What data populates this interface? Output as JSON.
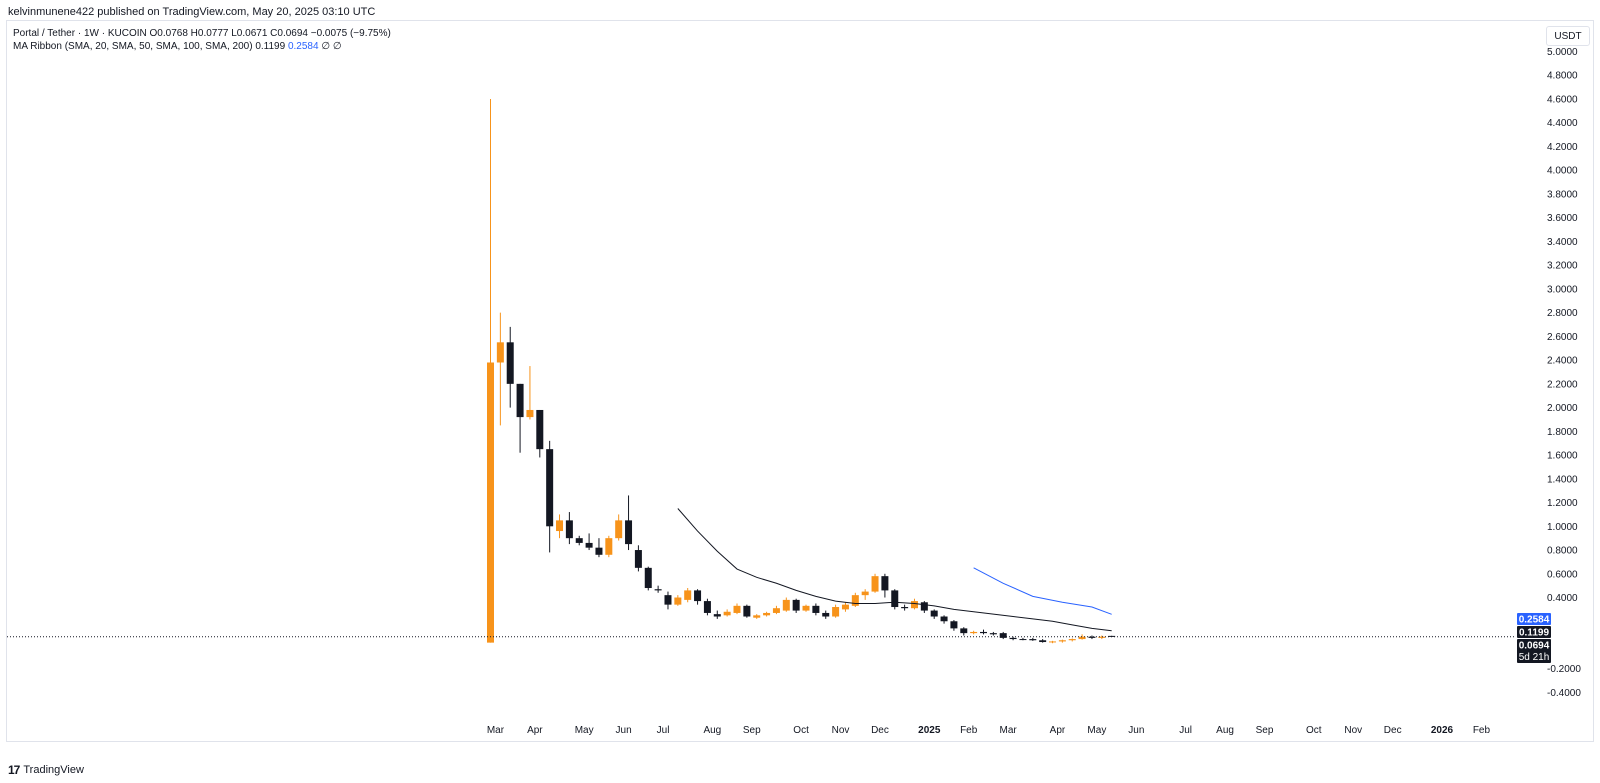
{
  "header": {
    "publish_line": "kelvinmunene422 published on TradingView.com, May 20, 2025 03:10 UTC"
  },
  "legend": {
    "symbol_line": "Portal / Tether · 1W · KUCOIN  O0.0768  H0.0777  L0.0671  C0.0694  −0.0075 (−9.75%)",
    "ma_prefix": "MA Ribbon (SMA, 20, SMA, 50, SMA, 100, SMA, 200)  0.1199 ",
    "ma_blue_value": "0.2584",
    "ma_suffix": "  ∅  ∅"
  },
  "currency_button": "USDT",
  "footer": {
    "logo_mark": "17",
    "logo_text": "TradingView"
  },
  "colors": {
    "up": "#f7931a",
    "down": "#131722",
    "ma20": "#131722",
    "ma50": "#2962ff",
    "price_line": "#131722"
  },
  "chart_data": {
    "type": "candlestick",
    "interval": "1W",
    "yaxis": {
      "ticks": [
        "5.0000",
        "4.8000",
        "4.6000",
        "4.4000",
        "4.2000",
        "4.0000",
        "3.8000",
        "3.6000",
        "3.4000",
        "3.2000",
        "3.0000",
        "2.8000",
        "2.6000",
        "2.4000",
        "2.2000",
        "2.0000",
        "1.8000",
        "1.6000",
        "1.4000",
        "1.2000",
        "1.0000",
        "0.8000",
        "0.6000",
        "0.4000",
        "-0.2000",
        "-0.4000"
      ],
      "range": [
        -0.5,
        5.1
      ]
    },
    "xaxis": {
      "ticks": [
        "Mar",
        "Apr",
        "May",
        "Jun",
        "Jul",
        "Aug",
        "Sep",
        "Oct",
        "Nov",
        "Dec",
        "2025",
        "Feb",
        "Mar",
        "Apr",
        "May",
        "Jun",
        "Jul",
        "Aug",
        "Sep",
        "Oct",
        "Nov",
        "Dec",
        "2026",
        "Feb"
      ],
      "tick_week_index": [
        0.5,
        4.5,
        9.5,
        13.5,
        17.5,
        22.5,
        26.5,
        31.5,
        35.5,
        39.5,
        44.5,
        48.5,
        52.5,
        57.5,
        61.5,
        65.5,
        70.5,
        74.5,
        78.5,
        83.5,
        87.5,
        91.5,
        96.5,
        100.5
      ]
    },
    "candles": [
      {
        "o": 0.02,
        "h": 4.6,
        "l": 0.02,
        "c": 2.38
      },
      {
        "o": 2.38,
        "h": 2.8,
        "l": 1.85,
        "c": 2.55
      },
      {
        "o": 2.55,
        "h": 2.68,
        "l": 2.0,
        "c": 2.2
      },
      {
        "o": 2.2,
        "h": 2.2,
        "l": 1.62,
        "c": 1.92
      },
      {
        "o": 1.92,
        "h": 2.35,
        "l": 1.9,
        "c": 1.98
      },
      {
        "o": 1.98,
        "h": 1.98,
        "l": 1.58,
        "c": 1.65
      },
      {
        "o": 1.65,
        "h": 1.72,
        "l": 0.78,
        "c": 1.0
      },
      {
        "o": 0.96,
        "h": 1.1,
        "l": 0.9,
        "c": 1.05
      },
      {
        "o": 1.05,
        "h": 1.12,
        "l": 0.85,
        "c": 0.9
      },
      {
        "o": 0.9,
        "h": 0.92,
        "l": 0.84,
        "c": 0.86
      },
      {
        "o": 0.86,
        "h": 0.94,
        "l": 0.8,
        "c": 0.82
      },
      {
        "o": 0.82,
        "h": 0.9,
        "l": 0.74,
        "c": 0.76
      },
      {
        "o": 0.76,
        "h": 0.92,
        "l": 0.74,
        "c": 0.9
      },
      {
        "o": 0.9,
        "h": 1.1,
        "l": 0.88,
        "c": 1.05
      },
      {
        "o": 1.05,
        "h": 1.26,
        "l": 0.8,
        "c": 0.85
      },
      {
        "o": 0.8,
        "h": 0.84,
        "l": 0.62,
        "c": 0.65
      },
      {
        "o": 0.65,
        "h": 0.66,
        "l": 0.46,
        "c": 0.48
      },
      {
        "o": 0.47,
        "h": 0.5,
        "l": 0.44,
        "c": 0.46
      },
      {
        "o": 0.42,
        "h": 0.45,
        "l": 0.3,
        "c": 0.34
      },
      {
        "o": 0.34,
        "h": 0.42,
        "l": 0.33,
        "c": 0.4
      },
      {
        "o": 0.38,
        "h": 0.48,
        "l": 0.36,
        "c": 0.46
      },
      {
        "o": 0.46,
        "h": 0.47,
        "l": 0.34,
        "c": 0.37
      },
      {
        "o": 0.37,
        "h": 0.39,
        "l": 0.25,
        "c": 0.27
      },
      {
        "o": 0.26,
        "h": 0.29,
        "l": 0.22,
        "c": 0.24
      },
      {
        "o": 0.25,
        "h": 0.3,
        "l": 0.24,
        "c": 0.28
      },
      {
        "o": 0.27,
        "h": 0.35,
        "l": 0.26,
        "c": 0.33
      },
      {
        "o": 0.33,
        "h": 0.34,
        "l": 0.23,
        "c": 0.24
      },
      {
        "o": 0.23,
        "h": 0.26,
        "l": 0.22,
        "c": 0.25
      },
      {
        "o": 0.25,
        "h": 0.28,
        "l": 0.24,
        "c": 0.27
      },
      {
        "o": 0.27,
        "h": 0.33,
        "l": 0.26,
        "c": 0.31
      },
      {
        "o": 0.29,
        "h": 0.4,
        "l": 0.28,
        "c": 0.38
      },
      {
        "o": 0.38,
        "h": 0.39,
        "l": 0.27,
        "c": 0.29
      },
      {
        "o": 0.29,
        "h": 0.34,
        "l": 0.28,
        "c": 0.33
      },
      {
        "o": 0.33,
        "h": 0.35,
        "l": 0.25,
        "c": 0.27
      },
      {
        "o": 0.27,
        "h": 0.29,
        "l": 0.22,
        "c": 0.24
      },
      {
        "o": 0.24,
        "h": 0.34,
        "l": 0.23,
        "c": 0.32
      },
      {
        "o": 0.3,
        "h": 0.36,
        "l": 0.28,
        "c": 0.34
      },
      {
        "o": 0.33,
        "h": 0.44,
        "l": 0.32,
        "c": 0.42
      },
      {
        "o": 0.42,
        "h": 0.47,
        "l": 0.38,
        "c": 0.45
      },
      {
        "o": 0.45,
        "h": 0.6,
        "l": 0.44,
        "c": 0.58
      },
      {
        "o": 0.58,
        "h": 0.6,
        "l": 0.4,
        "c": 0.46
      },
      {
        "o": 0.46,
        "h": 0.47,
        "l": 0.3,
        "c": 0.32
      },
      {
        "o": 0.32,
        "h": 0.34,
        "l": 0.29,
        "c": 0.31
      },
      {
        "o": 0.31,
        "h": 0.39,
        "l": 0.3,
        "c": 0.37
      },
      {
        "o": 0.36,
        "h": 0.37,
        "l": 0.27,
        "c": 0.29
      },
      {
        "o": 0.29,
        "h": 0.3,
        "l": 0.22,
        "c": 0.24
      },
      {
        "o": 0.24,
        "h": 0.25,
        "l": 0.18,
        "c": 0.2
      },
      {
        "o": 0.2,
        "h": 0.21,
        "l": 0.12,
        "c": 0.14
      },
      {
        "o": 0.14,
        "h": 0.15,
        "l": 0.08,
        "c": 0.1
      },
      {
        "o": 0.1,
        "h": 0.12,
        "l": 0.09,
        "c": 0.11
      },
      {
        "o": 0.11,
        "h": 0.13,
        "l": 0.09,
        "c": 0.1
      },
      {
        "o": 0.1,
        "h": 0.11,
        "l": 0.08,
        "c": 0.09
      },
      {
        "o": 0.1,
        "h": 0.11,
        "l": 0.05,
        "c": 0.06
      },
      {
        "o": 0.06,
        "h": 0.07,
        "l": 0.04,
        "c": 0.05
      },
      {
        "o": 0.05,
        "h": 0.06,
        "l": 0.04,
        "c": 0.045
      },
      {
        "o": 0.05,
        "h": 0.06,
        "l": 0.035,
        "c": 0.04
      },
      {
        "o": 0.04,
        "h": 0.05,
        "l": 0.02,
        "c": 0.025
      },
      {
        "o": 0.025,
        "h": 0.035,
        "l": 0.015,
        "c": 0.03
      },
      {
        "o": 0.03,
        "h": 0.045,
        "l": 0.02,
        "c": 0.04
      },
      {
        "o": 0.04,
        "h": 0.055,
        "l": 0.03,
        "c": 0.05
      },
      {
        "o": 0.05,
        "h": 0.09,
        "l": 0.045,
        "c": 0.07
      },
      {
        "o": 0.07,
        "h": 0.08,
        "l": 0.05,
        "c": 0.06
      },
      {
        "o": 0.06,
        "h": 0.08,
        "l": 0.05,
        "c": 0.07
      },
      {
        "o": 0.0768,
        "h": 0.0777,
        "l": 0.0671,
        "c": 0.0694
      }
    ],
    "ma20": [
      [
        19,
        1.15
      ],
      [
        21,
        0.96
      ],
      [
        23,
        0.79
      ],
      [
        25,
        0.64
      ],
      [
        27,
        0.57
      ],
      [
        29,
        0.52
      ],
      [
        31,
        0.46
      ],
      [
        33,
        0.41
      ],
      [
        35,
        0.37
      ],
      [
        37,
        0.35
      ],
      [
        39,
        0.35
      ],
      [
        41,
        0.36
      ],
      [
        43,
        0.35
      ],
      [
        45,
        0.33
      ],
      [
        47,
        0.3
      ],
      [
        49,
        0.28
      ],
      [
        51,
        0.26
      ],
      [
        53,
        0.24
      ],
      [
        55,
        0.22
      ],
      [
        57,
        0.2
      ],
      [
        59,
        0.17
      ],
      [
        61,
        0.14
      ],
      [
        63,
        0.1199
      ]
    ],
    "ma50": [
      [
        49,
        0.65
      ],
      [
        52,
        0.52
      ],
      [
        55,
        0.41
      ],
      [
        58,
        0.36
      ],
      [
        61,
        0.32
      ],
      [
        63,
        0.2584
      ]
    ],
    "price_labels": [
      {
        "value": 0.2584,
        "text": "0.2584",
        "color": "#2962ff"
      },
      {
        "value": 0.1199,
        "text": "0.1199",
        "color": "#131722"
      },
      {
        "value": 0.0694,
        "text": "0.0694",
        "color": "#131722",
        "sub": "5d 21h"
      }
    ],
    "last_price": 0.0694
  }
}
